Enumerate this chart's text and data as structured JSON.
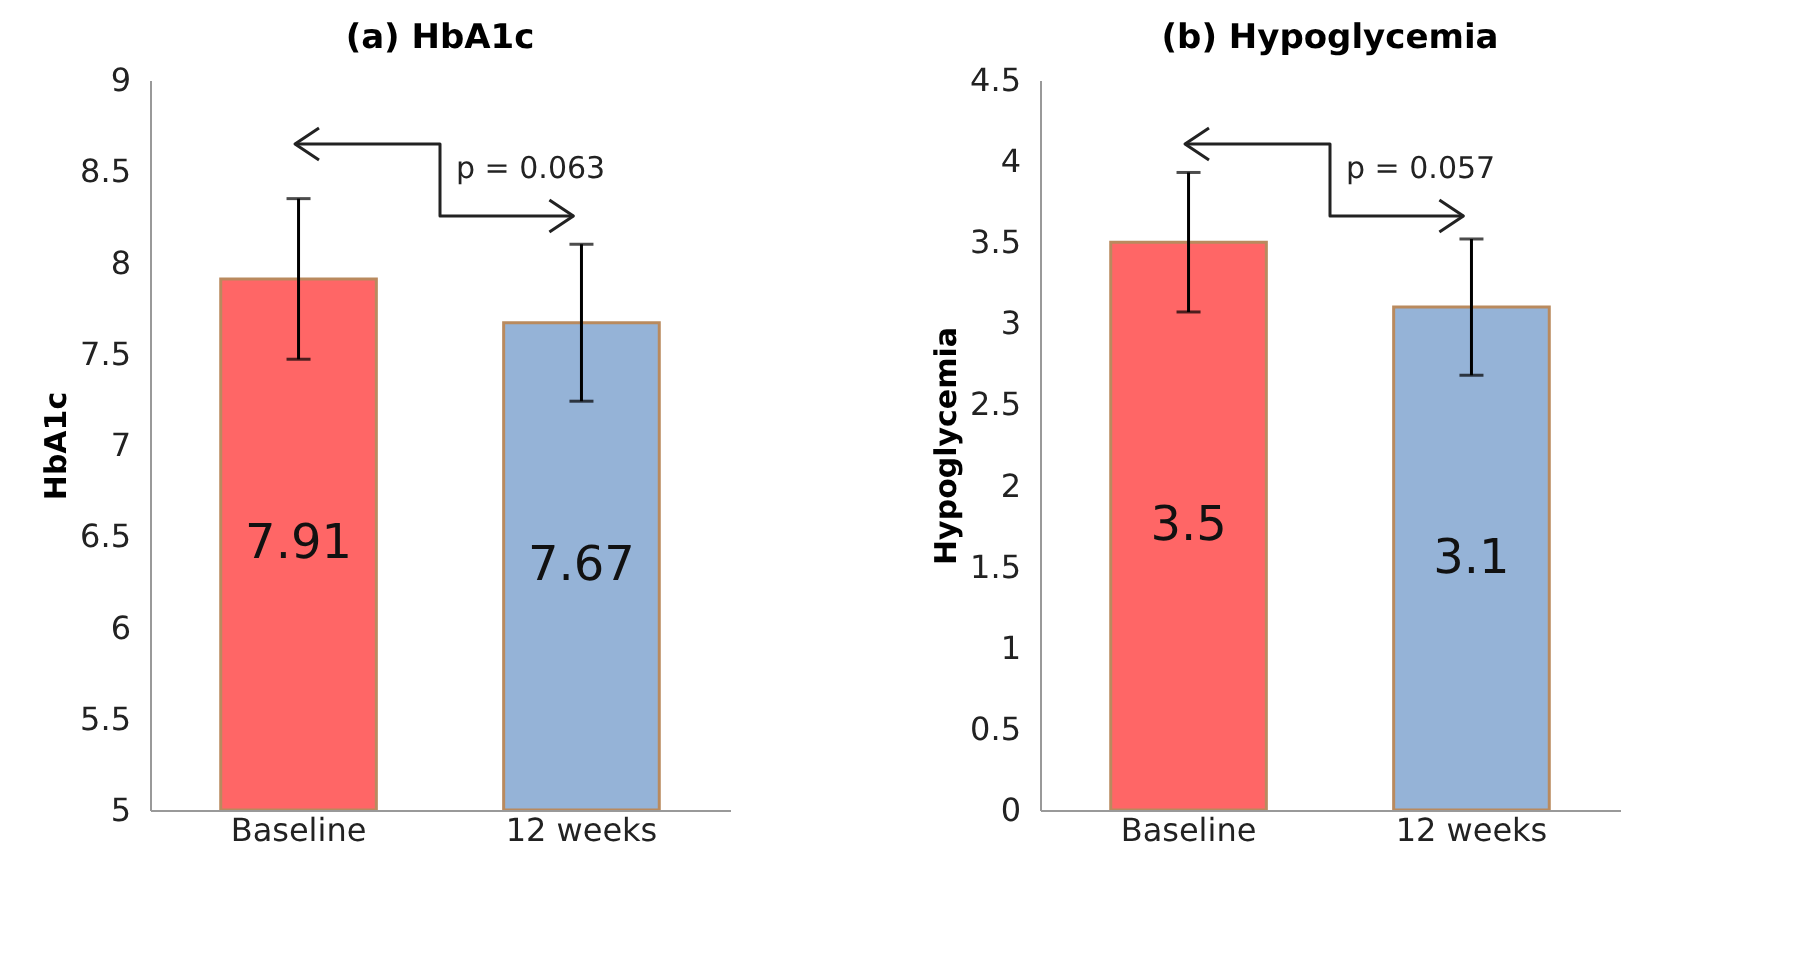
{
  "chart_data": [
    {
      "type": "bar",
      "title": "(a) HbA1c",
      "ylabel": "HbA1c",
      "categories": [
        "Baseline",
        "12 weeks"
      ],
      "values": [
        7.91,
        7.67
      ],
      "colors": [
        "#ff6666",
        "#95b3d7"
      ],
      "errors": [
        0.44,
        0.43
      ],
      "ylim": [
        5,
        9
      ],
      "yticks": [
        5,
        5.5,
        6,
        6.5,
        7,
        7.5,
        8,
        8.5,
        9
      ],
      "data_labels": true,
      "grid": false,
      "annotations": [
        "p = 0.063"
      ]
    },
    {
      "type": "bar",
      "title": "(b) Hypoglycemia",
      "ylabel": "Hypoglycemia",
      "categories": [
        "Baseline",
        "12 weeks"
      ],
      "values": [
        3.5,
        3.1
      ],
      "colors": [
        "#ff6666",
        "#95b3d7"
      ],
      "errors": [
        0.43,
        0.42
      ],
      "ylim": [
        0,
        4.5
      ],
      "yticks": [
        0,
        0.5,
        1,
        1.5,
        2,
        2.5,
        3,
        3.5,
        4,
        4.5
      ],
      "data_labels": true,
      "grid": false,
      "annotations": [
        "p = 0.057"
      ]
    }
  ]
}
